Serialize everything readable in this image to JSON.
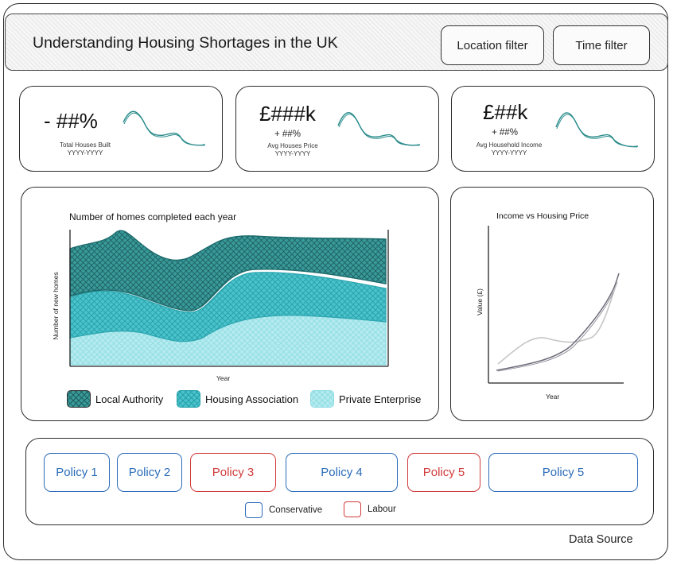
{
  "header": {
    "title": "Understanding Housing Shortages in the UK",
    "location_filter_label": "Location filter",
    "time_filter_label": "Time filter"
  },
  "kpis": [
    {
      "value": "- ##%",
      "change": "",
      "label": "Total Houses Built",
      "period": "YYYY-YYYY"
    },
    {
      "value": "£###k",
      "change": "+ ##%",
      "label": "Avg Houses Price",
      "period": "YYYY-YYYY"
    },
    {
      "value": "£##k",
      "change": "+ ##%",
      "label": "Avg Household Income",
      "period": "YYYY-YYYY"
    }
  ],
  "homes_chart": {
    "title": "Number of homes completed each year",
    "xlabel": "Year",
    "ylabel": "Number of new homes",
    "legend": [
      "Local Authority",
      "Housing Association",
      "Private Enterprise"
    ],
    "colors": {
      "local_authority": "#2b8c8c",
      "housing_association": "#3fb6c2",
      "private_enterprise": "#8fdde4"
    }
  },
  "income_chart": {
    "title": "Income vs Housing Price",
    "xlabel": "Year",
    "ylabel": "Value (£)"
  },
  "policies": [
    {
      "label": "Policy 1",
      "party": "conservative"
    },
    {
      "label": "Policy 2",
      "party": "conservative"
    },
    {
      "label": "Policy 3",
      "party": "labour"
    },
    {
      "label": "Policy 4",
      "party": "conservative"
    },
    {
      "label": "Policy 5",
      "party": "labour"
    },
    {
      "label": "Policy 5",
      "party": "conservative"
    }
  ],
  "party_legend": {
    "conservative": "Conservative",
    "labour": "Labour",
    "conservative_color": "#2b6cb8",
    "labour_color": "#d23a3a"
  },
  "footer": {
    "data_source": "Data Source"
  }
}
